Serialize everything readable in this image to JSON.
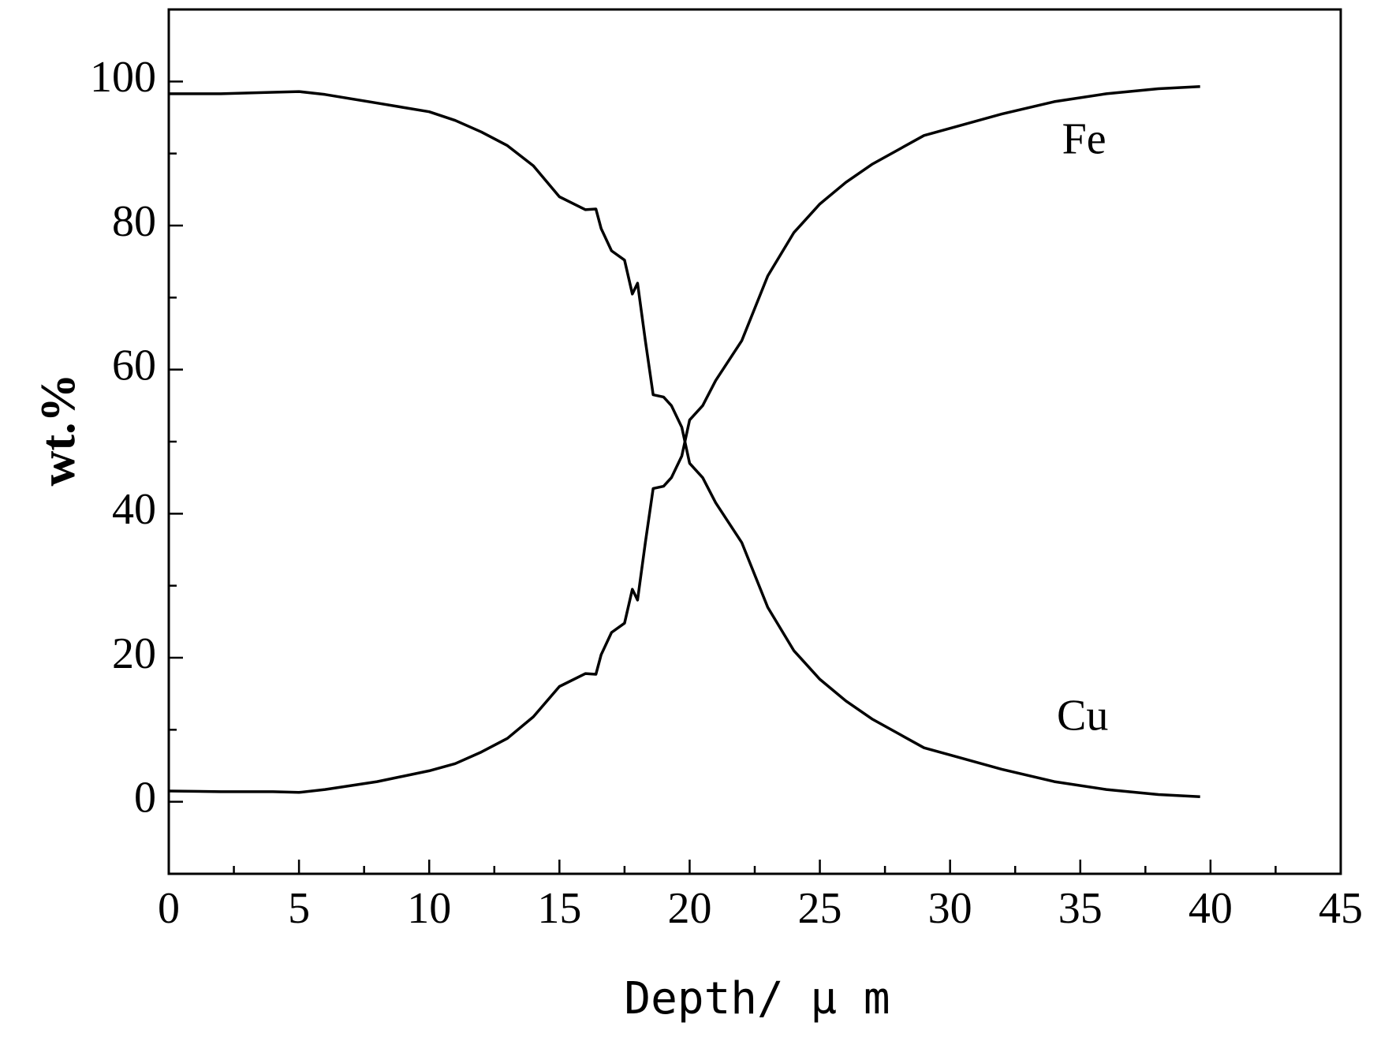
{
  "chart_data": {
    "type": "line",
    "title": "",
    "xlabel": "Depth/ μ m",
    "ylabel": "wt.%",
    "xlim": [
      0,
      45
    ],
    "ylim": [
      -10,
      110
    ],
    "x_ticks": [
      "0",
      "5",
      "10",
      "15",
      "20",
      "25",
      "30",
      "35",
      "40",
      "45"
    ],
    "y_ticks": [
      "0",
      "20",
      "40",
      "60",
      "80",
      "100"
    ],
    "grid": false,
    "legend": "none",
    "series_color": "#000000",
    "series": [
      {
        "name": "Fe",
        "x": [
          0,
          2,
          4,
          5,
          6,
          8,
          10,
          11,
          12,
          13,
          14,
          15,
          16,
          16.4,
          16.6,
          17,
          17.5,
          17.8,
          18,
          18.3,
          18.6,
          19,
          19.3,
          19.7,
          20,
          20.5,
          21,
          22,
          23,
          24,
          25,
          26,
          27,
          28,
          29,
          30,
          32,
          34,
          36,
          38,
          39.6
        ],
        "y": [
          1.5,
          1.4,
          1.4,
          1.3,
          1.7,
          2.8,
          4.3,
          5.3,
          6.9,
          8.8,
          11.8,
          16.0,
          17.8,
          17.7,
          20.4,
          23.5,
          24.8,
          29.5,
          28.0,
          36.0,
          43.5,
          43.8,
          45.0,
          48.0,
          53.0,
          55.0,
          58.5,
          64.0,
          73.0,
          79.0,
          83.0,
          86.0,
          88.5,
          90.5,
          92.5,
          93.5,
          95.5,
          97.2,
          98.3,
          99.0,
          99.3
        ]
      },
      {
        "name": "Cu",
        "x": [
          0,
          2,
          4,
          5,
          6,
          8,
          10,
          11,
          12,
          13,
          14,
          15,
          16,
          16.4,
          16.6,
          17,
          17.5,
          17.8,
          18,
          18.3,
          18.6,
          19,
          19.3,
          19.7,
          20,
          20.5,
          21,
          22,
          23,
          24,
          25,
          26,
          27,
          28,
          29,
          30,
          32,
          34,
          36,
          38,
          39.6
        ],
        "y": [
          98.3,
          98.3,
          98.5,
          98.6,
          98.2,
          97.0,
          95.8,
          94.6,
          93.0,
          91.1,
          88.3,
          84.0,
          82.2,
          82.3,
          79.6,
          76.5,
          75.2,
          70.5,
          72.0,
          64.0,
          56.5,
          56.2,
          55.0,
          52.0,
          47.0,
          45.0,
          41.5,
          36.0,
          27.0,
          21.0,
          17.0,
          14.0,
          11.5,
          9.5,
          7.5,
          6.5,
          4.5,
          2.8,
          1.7,
          1.0,
          0.7
        ]
      }
    ]
  }
}
